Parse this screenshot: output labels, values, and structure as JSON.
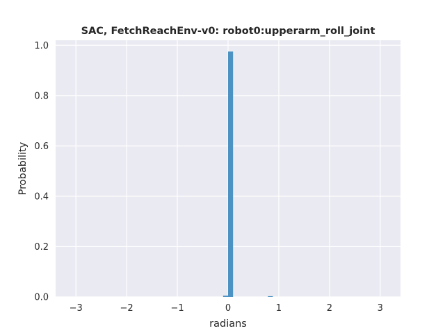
{
  "chart_data": {
    "type": "bar",
    "title": "SAC, FetchReachEnv-v0: robot0:upperarm_roll_joint",
    "xlabel": "radians",
    "ylabel": "Probability",
    "xlim": [
      -3.4,
      3.4
    ],
    "ylim": [
      0,
      1.02
    ],
    "xticks": [
      -3,
      -2,
      -1,
      0,
      1,
      2,
      3
    ],
    "xtick_labels": [
      "−3",
      "−2",
      "−1",
      "0",
      "1",
      "2",
      "3"
    ],
    "yticks": [
      0.0,
      0.2,
      0.4,
      0.6,
      0.8,
      1.0
    ],
    "ytick_labels": [
      "0.0",
      "0.2",
      "0.4",
      "0.6",
      "0.8",
      "1.0"
    ],
    "grid": true,
    "bin_width": 0.0982,
    "bins": [
      {
        "x": -0.098,
        "value": 0.005
      },
      {
        "x": 0.0,
        "value": 0.975
      },
      {
        "x": 0.785,
        "value": 0.003
      }
    ],
    "colors": {
      "background": "#eaeaf2",
      "grid": "#ffffff",
      "bar": "#4c92c3",
      "text": "#262626"
    }
  }
}
